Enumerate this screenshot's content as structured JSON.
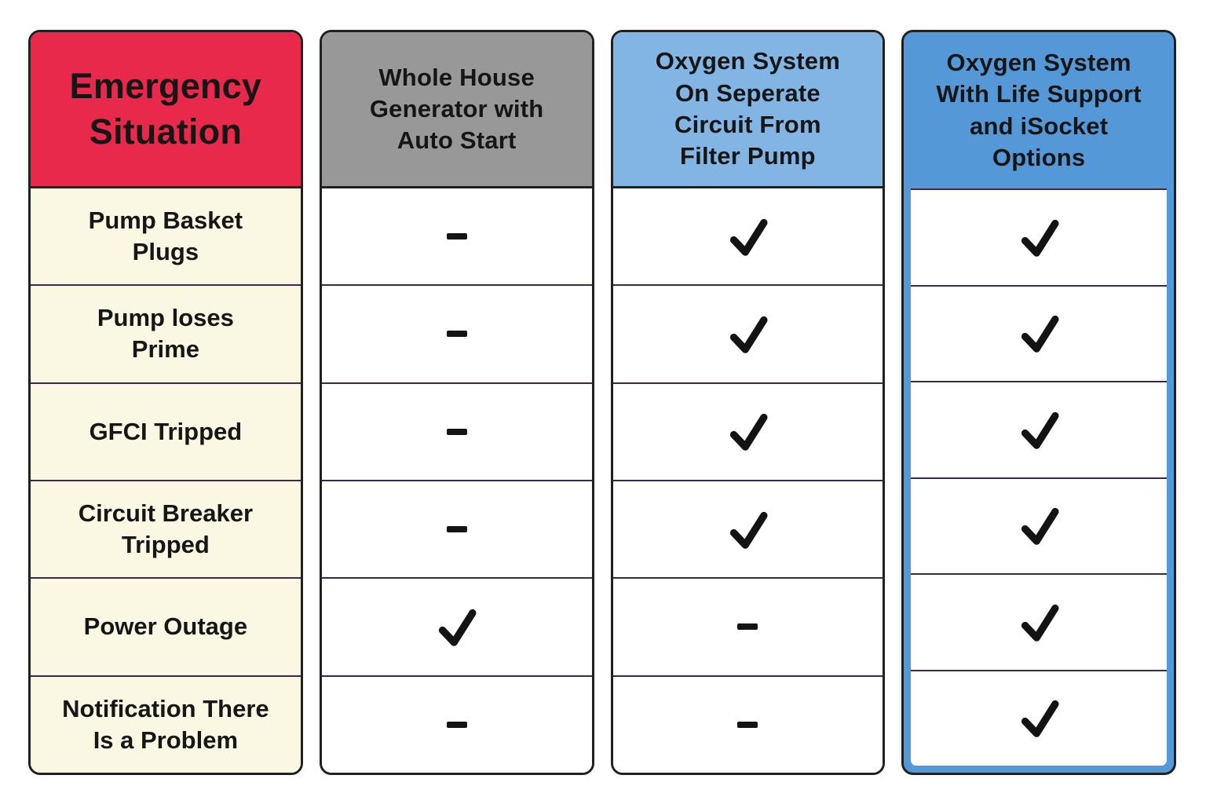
{
  "table": {
    "columns": [
      {
        "id": "emergency-situation",
        "header": "Emergency\nSituation",
        "header_bg": "#e8294b",
        "body_bg": "#faf8e3"
      },
      {
        "id": "whole-house-generator",
        "header": "Whole House\nGenerator with\nAuto Start",
        "header_bg": "#989898",
        "body_bg": "#ffffff"
      },
      {
        "id": "oxygen-separate-circuit",
        "header": "Oxygen System\nOn Seperate\nCircuit From\nFilter Pump",
        "header_bg": "#82b5e3",
        "body_bg": "#ffffff"
      },
      {
        "id": "oxygen-life-support",
        "header": "Oxygen System\nWith Life Support\nand iSocket\nOptions",
        "header_bg": "#5598d7",
        "body_bg": "#ffffff",
        "frame_color": "#5598d7"
      }
    ],
    "rows": [
      {
        "label": "Pump Basket\nPlugs",
        "values": [
          "dash",
          "check",
          "check"
        ]
      },
      {
        "label": "Pump loses\nPrime",
        "values": [
          "dash",
          "check",
          "check"
        ]
      },
      {
        "label": "GFCI Tripped",
        "values": [
          "dash",
          "check",
          "check"
        ]
      },
      {
        "label": "Circuit Breaker\nTripped",
        "values": [
          "dash",
          "check",
          "check"
        ]
      },
      {
        "label": "Power Outage",
        "values": [
          "check",
          "dash",
          "check"
        ]
      },
      {
        "label": "Notification There\nIs a Problem",
        "values": [
          "dash",
          "dash",
          "check"
        ]
      }
    ],
    "colors": {
      "text": "#161616",
      "outer_border": "#202020",
      "row_divider": "#3a284d",
      "check": "#131313",
      "dash": "#141414",
      "highlight_frame": "#5598d7"
    }
  },
  "chart_data": {
    "type": "table",
    "title": "Emergency Situation comparison",
    "columns": [
      "Emergency Situation",
      "Whole House Generator with Auto Start",
      "Oxygen System On Seperate Circuit From Filter Pump",
      "Oxygen System With Life Support and iSocket Options"
    ],
    "rows": [
      [
        "Pump Basket Plugs",
        "-",
        "✓",
        "✓"
      ],
      [
        "Pump loses Prime",
        "-",
        "✓",
        "✓"
      ],
      [
        "GFCI Tripped",
        "-",
        "✓",
        "✓"
      ],
      [
        "Circuit Breaker Tripped",
        "-",
        "✓",
        "✓"
      ],
      [
        "Power Outage",
        "✓",
        "-",
        "✓"
      ],
      [
        "Notification There Is a Problem",
        "-",
        "-",
        "✓"
      ]
    ],
    "legend_position": "none",
    "grid": true,
    "highlighted_column": "Oxygen System With Life Support and iSocket Options"
  }
}
